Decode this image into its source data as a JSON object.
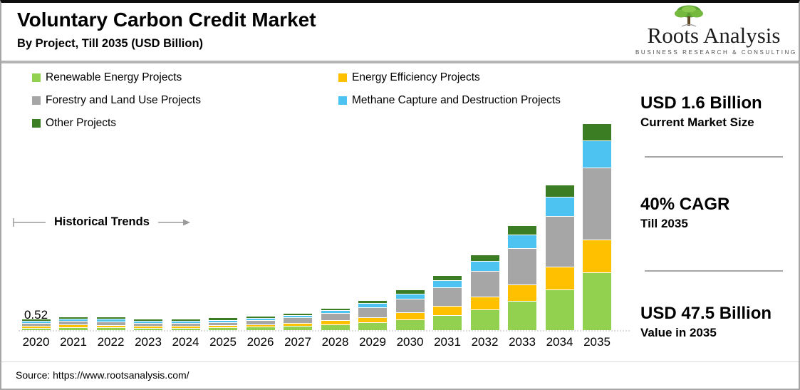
{
  "header": {
    "title": "Voluntary Carbon Credit Market",
    "subtitle": "By Project, Till 2035 (USD Billion)",
    "logo": {
      "name": "Roots Analysis",
      "tagline": "BUSINESS RESEARCH & CONSULTING"
    }
  },
  "annotations": {
    "historical_trends": "Historical Trends"
  },
  "stats": [
    {
      "value": "USD 1.6 Billion",
      "caption": "Current Market Size"
    },
    {
      "value": "40% CAGR",
      "caption": "Till 2035"
    },
    {
      "value": "USD 47.5 Billion",
      "caption": "Value in 2035"
    }
  ],
  "source": "Source: https://www.rootsanalysis.com/",
  "chart_data": {
    "type": "bar",
    "stacked": true,
    "unit": "USD Billion",
    "title": "Voluntary Carbon Credit Market, By Project, Till 2035 (USD Billion)",
    "categories": [
      2020,
      2021,
      2022,
      2023,
      2024,
      2025,
      2026,
      2027,
      2028,
      2029,
      2030,
      2031,
      2032,
      2033,
      2034,
      2035
    ],
    "series": [
      {
        "name": "Renewable Energy Projects",
        "color": "#92d050",
        "values": [
          0.15,
          0.56,
          0.53,
          0.2,
          0.22,
          0.45,
          0.62,
          0.87,
          1.23,
          1.71,
          2.41,
          3.36,
          4.73,
          6.61,
          9.27,
          13.3
        ]
      },
      {
        "name": "Energy Efficiency Projects",
        "color": "#ffc000",
        "values": [
          0.08,
          0.32,
          0.3,
          0.11,
          0.13,
          0.26,
          0.35,
          0.5,
          0.7,
          0.98,
          1.38,
          1.92,
          2.7,
          3.78,
          5.3,
          7.6
        ]
      },
      {
        "name": "Forestry and Land Use Projects",
        "color": "#a6a6a6",
        "values": [
          0.18,
          0.7,
          0.67,
          0.24,
          0.28,
          0.56,
          0.77,
          1.08,
          1.54,
          2.13,
          3.01,
          4.2,
          5.92,
          8.26,
          11.58,
          16.62
        ]
      },
      {
        "name": "Methane Capture and Destruction Projects",
        "color": "#4cc3f0",
        "values": [
          0.07,
          0.26,
          0.25,
          0.09,
          0.1,
          0.21,
          0.29,
          0.4,
          0.57,
          0.79,
          1.12,
          1.56,
          2.2,
          3.07,
          4.3,
          6.18
        ]
      },
      {
        "name": "Other Projects",
        "color": "#3b7d23",
        "values": [
          0.04,
          0.16,
          0.15,
          0.06,
          0.07,
          0.12,
          0.17,
          0.25,
          0.36,
          0.49,
          0.68,
          0.96,
          1.35,
          1.88,
          2.65,
          3.8
        ]
      }
    ],
    "totals": [
      0.52,
      2.0,
      1.9,
      0.7,
      0.8,
      1.6,
      2.2,
      3.1,
      4.4,
      6.1,
      8.6,
      12.0,
      16.9,
      23.6,
      33.1,
      47.5
    ],
    "data_label": {
      "year": 2020,
      "text": "0.52"
    },
    "ylim": [
      0,
      47.5
    ],
    "grid": false,
    "legend_position": "top-left"
  }
}
